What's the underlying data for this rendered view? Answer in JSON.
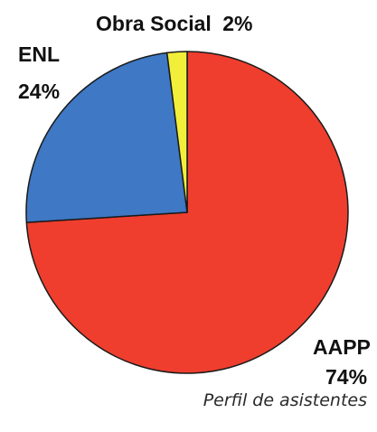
{
  "chart_data": {
    "type": "pie",
    "slices": [
      {
        "label": "AAPP",
        "pct": "74%",
        "value": 74,
        "color": "#ef3e2e"
      },
      {
        "label": "ENL",
        "pct": "24%",
        "value": 24,
        "color": "#3f78c4"
      },
      {
        "label": "Obra Social",
        "pct": "2%",
        "value": 2,
        "color": "#f2ef3a"
      }
    ],
    "start_angle_deg": 0,
    "direction": "clockwise"
  },
  "caption": "Perfil de asistentes"
}
